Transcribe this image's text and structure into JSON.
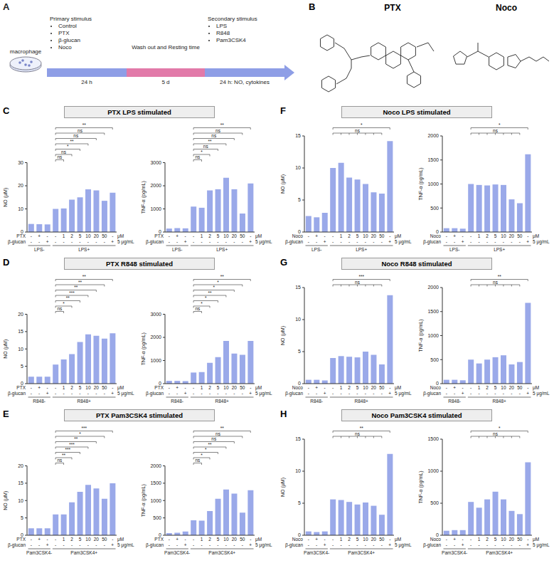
{
  "diagram": {
    "panel": "A",
    "cell_label": "macrophage",
    "steps": [
      {
        "title": "Primary stimulus",
        "items": [
          "Control",
          "PTX",
          "β-glucan",
          "Noco"
        ],
        "duration": "24 h"
      },
      {
        "title": "Wash out and Resting time",
        "items": [],
        "duration": "5 d"
      },
      {
        "title": "Secondary stimulus",
        "items": [
          "LPS",
          "R848",
          "Pam3CSK4"
        ],
        "duration": "24 h: NO, cytokines"
      }
    ]
  },
  "structures": {
    "panel": "B",
    "names": [
      "PTX",
      "Noco"
    ]
  },
  "chart_data": [
    {
      "type": "bar",
      "panel": "C",
      "title": "PTX LPS stimulated",
      "color": "#9aa9e9",
      "control": 3,
      "x_rows": [
        {
          "label": "PTX",
          "values": [
            "-",
            "+",
            "-",
            "-",
            "1",
            "2",
            "5",
            "10",
            "20",
            "50",
            "-"
          ],
          "unit": "μM"
        },
        {
          "label": "β-glucan",
          "values": [
            "-",
            "-",
            "+",
            "-",
            "-",
            "-",
            "-",
            "-",
            "-",
            "-",
            "+"
          ],
          "unit": "5 μg/mL"
        }
      ],
      "groups": [
        {
          "label": "LPS-",
          "count": 3
        },
        {
          "label": "LPS+",
          "count": 8
        }
      ],
      "charts": [
        {
          "y_label": "NO (μM)",
          "ylim": [
            0,
            30
          ],
          "yticks": [
            0,
            10,
            20,
            30
          ],
          "values": [
            3.5,
            3.4,
            3.3,
            10,
            10.2,
            14,
            15,
            18.5,
            18,
            13.5,
            17
          ],
          "significance": [
            {
              "bars": [
                4
              ],
              "label": "ns"
            },
            {
              "bars": [
                5
              ],
              "label": "ns"
            },
            {
              "bars": [
                6
              ],
              "label": "*"
            },
            {
              "bars": [
                7
              ],
              "label": "**"
            },
            {
              "bars": [
                8
              ],
              "label": "ns"
            },
            {
              "bars": [
                9
              ],
              "label": "ns"
            },
            {
              "bars": [
                10
              ],
              "label": "**"
            }
          ]
        },
        {
          "y_label": "TNF-α (pg/mL)",
          "ylim": [
            0,
            3000
          ],
          "yticks": [
            0,
            1000,
            2000,
            3000
          ],
          "values": [
            150,
            170,
            160,
            1100,
            1050,
            1800,
            1850,
            2350,
            1850,
            800,
            2100
          ],
          "significance": [
            {
              "bars": [
                4
              ],
              "label": "ns"
            },
            {
              "bars": [
                5
              ],
              "label": "*"
            },
            {
              "bars": [
                6
              ],
              "label": "ns"
            },
            {
              "bars": [
                7
              ],
              "label": "**"
            },
            {
              "bars": [
                8
              ],
              "label": "ns"
            },
            {
              "bars": [
                9
              ],
              "label": "ns"
            },
            {
              "bars": [
                10
              ],
              "label": "**"
            }
          ]
        }
      ]
    },
    {
      "type": "bar",
      "panel": "D",
      "title": "PTX R848 stimulated",
      "color": "#9aa9e9",
      "control": 3,
      "x_rows": [
        {
          "label": "PTX",
          "values": [
            "-",
            "+",
            "-",
            "-",
            "1",
            "2",
            "5",
            "10",
            "20",
            "50",
            "-"
          ],
          "unit": "μM"
        },
        {
          "label": "β-glucan",
          "values": [
            "-",
            "-",
            "+",
            "-",
            "-",
            "-",
            "-",
            "-",
            "-",
            "-",
            "+"
          ],
          "unit": "5 μg/mL"
        }
      ],
      "groups": [
        {
          "label": "R848-",
          "count": 3
        },
        {
          "label": "R848+",
          "count": 8
        }
      ],
      "charts": [
        {
          "y_label": "NO (μM)",
          "ylim": [
            0,
            20
          ],
          "yticks": [
            0,
            5,
            10,
            15,
            20
          ],
          "values": [
            2,
            2,
            2,
            5.5,
            7,
            8.5,
            12,
            14.2,
            13.8,
            13,
            14.5
          ],
          "significance": [
            {
              "bars": [
                4
              ],
              "label": "ns"
            },
            {
              "bars": [
                5
              ],
              "label": "*"
            },
            {
              "bars": [
                6
              ],
              "label": "**"
            },
            {
              "bars": [
                7
              ],
              "label": "***"
            },
            {
              "bars": [
                8
              ],
              "label": "**"
            },
            {
              "bars": [
                9
              ],
              "label": "**"
            },
            {
              "bars": [
                10
              ],
              "label": "**"
            }
          ]
        },
        {
          "y_label": "TNF-α (pg/mL)",
          "ylim": [
            0,
            3000
          ],
          "yticks": [
            0,
            1000,
            2000,
            3000
          ],
          "values": [
            120,
            120,
            110,
            480,
            500,
            900,
            1150,
            1850,
            1300,
            1250,
            1850
          ],
          "significance": [
            {
              "bars": [
                4
              ],
              "label": "ns"
            },
            {
              "bars": [
                5
              ],
              "label": "*"
            },
            {
              "bars": [
                6
              ],
              "label": "*"
            },
            {
              "bars": [
                7
              ],
              "label": "**"
            },
            {
              "bars": [
                8
              ],
              "label": "*"
            },
            {
              "bars": [
                9
              ],
              "label": "*"
            },
            {
              "bars": [
                10
              ],
              "label": "**"
            }
          ]
        }
      ]
    },
    {
      "type": "bar",
      "panel": "E",
      "title": "PTX Pam3CSK4 stimulated",
      "color": "#9aa9e9",
      "control": 3,
      "x_rows": [
        {
          "label": "PTX",
          "values": [
            "-",
            "+",
            "-",
            "-",
            "1",
            "2",
            "5",
            "10",
            "20",
            "50",
            "-"
          ],
          "unit": "μM"
        },
        {
          "label": "β-glucan",
          "values": [
            "-",
            "-",
            "+",
            "-",
            "-",
            "-",
            "-",
            "-",
            "-",
            "-",
            "+"
          ],
          "unit": "5 μg/mL"
        }
      ],
      "groups": [
        {
          "label": "Pam3CSK4-",
          "count": 3
        },
        {
          "label": "Pam3CSK4+",
          "count": 8
        }
      ],
      "charts": [
        {
          "y_label": "NO (μM)",
          "ylim": [
            0,
            20
          ],
          "yticks": [
            0,
            5,
            10,
            15,
            20
          ],
          "values": [
            2,
            2,
            2,
            6,
            6,
            9.5,
            12.5,
            14.5,
            13.5,
            10.5,
            15
          ],
          "significance": [
            {
              "bars": [
                4
              ],
              "label": "ns"
            },
            {
              "bars": [
                5
              ],
              "label": "**"
            },
            {
              "bars": [
                6
              ],
              "label": "***"
            },
            {
              "bars": [
                7
              ],
              "label": "***"
            },
            {
              "bars": [
                8
              ],
              "label": "**"
            },
            {
              "bars": [
                9
              ],
              "label": "*"
            },
            {
              "bars": [
                10
              ],
              "label": "***"
            }
          ]
        },
        {
          "y_label": "TNF-α (pg/mL)",
          "ylim": [
            0,
            2000
          ],
          "yticks": [
            0,
            500,
            1000,
            1500,
            2000
          ],
          "values": [
            60,
            70,
            110,
            430,
            420,
            700,
            1050,
            1320,
            1200,
            650,
            1300
          ],
          "significance": [
            {
              "bars": [
                4
              ],
              "label": "ns"
            },
            {
              "bars": [
                5
              ],
              "label": "*"
            },
            {
              "bars": [
                6
              ],
              "label": "*"
            },
            {
              "bars": [
                7
              ],
              "label": "**"
            },
            {
              "bars": [
                8
              ],
              "label": "ns"
            },
            {
              "bars": [
                9
              ],
              "label": "ns"
            },
            {
              "bars": [
                10
              ],
              "label": "**"
            }
          ]
        }
      ]
    },
    {
      "type": "bar",
      "panel": "F",
      "title": "Noco LPS stimulated",
      "color": "#9aa9e9",
      "control": 3,
      "x_rows": [
        {
          "label": "Noco",
          "values": [
            "-",
            "+",
            "-",
            "-",
            "1",
            "2",
            "5",
            "10",
            "20",
            "50",
            "-"
          ],
          "unit": "μM"
        },
        {
          "label": "β-glucan",
          "values": [
            "-",
            "-",
            "+",
            "-",
            "-",
            "-",
            "-",
            "-",
            "-",
            "-",
            "+"
          ],
          "unit": "5 μg/mL"
        }
      ],
      "groups": [
        {
          "label": "LPS-",
          "count": 3
        },
        {
          "label": "LPS+",
          "count": 8
        }
      ],
      "charts": [
        {
          "y_label": "NO (μM)",
          "ylim": [
            0,
            15
          ],
          "yticks": [
            0,
            5,
            10,
            15
          ],
          "values": [
            2.5,
            2.3,
            3,
            10,
            10.8,
            8.5,
            8.2,
            7.5,
            6.2,
            6,
            14.2
          ],
          "significance": [
            {
              "bars": [
                4,
                5,
                6,
                7,
                8,
                9
              ],
              "label": "ns"
            },
            {
              "bars": [
                10
              ],
              "label": "*"
            }
          ]
        },
        {
          "y_label": "TNF-α (pg/mL)",
          "ylim": [
            0,
            2000
          ],
          "yticks": [
            0,
            500,
            1000,
            1500,
            2000
          ],
          "values": [
            80,
            80,
            70,
            1000,
            980,
            970,
            990,
            980,
            680,
            600,
            1620
          ],
          "significance": [
            {
              "bars": [
                4,
                5,
                6,
                7,
                8,
                9
              ],
              "label": "ns"
            },
            {
              "bars": [
                10
              ],
              "label": "*"
            }
          ]
        }
      ]
    },
    {
      "type": "bar",
      "panel": "G",
      "title": "Noco R848 stimulated",
      "color": "#9aa9e9",
      "control": 3,
      "x_rows": [
        {
          "label": "Noco",
          "values": [
            "-",
            "+",
            "-",
            "-",
            "1",
            "2",
            "5",
            "10",
            "20",
            "50",
            "-"
          ],
          "unit": "μM"
        },
        {
          "label": "β-glucan",
          "values": [
            "-",
            "-",
            "+",
            "-",
            "-",
            "-",
            "-",
            "-",
            "-",
            "-",
            "+"
          ],
          "unit": "5 μg/mL"
        }
      ],
      "groups": [
        {
          "label": "R848-",
          "count": 3
        },
        {
          "label": "R848+",
          "count": 8
        }
      ],
      "charts": [
        {
          "y_label": "NO (μM)",
          "ylim": [
            0,
            15
          ],
          "yticks": [
            0,
            5,
            10,
            15
          ],
          "values": [
            0.6,
            0.6,
            0.5,
            4,
            4.3,
            4.2,
            4.1,
            5,
            4.5,
            3,
            13.8
          ],
          "significance": [
            {
              "bars": [
                4,
                5,
                6,
                7,
                8,
                9
              ],
              "label": "ns"
            },
            {
              "bars": [
                10
              ],
              "label": "***"
            }
          ]
        },
        {
          "y_label": "TNF-α (pg/mL)",
          "ylim": [
            0,
            2000
          ],
          "yticks": [
            0,
            500,
            1000,
            1500,
            2000
          ],
          "values": [
            80,
            80,
            70,
            500,
            420,
            500,
            550,
            590,
            400,
            450,
            1680
          ],
          "significance": [
            {
              "bars": [
                4,
                5,
                6,
                7,
                8,
                9
              ],
              "label": "ns"
            },
            {
              "bars": [
                10
              ],
              "label": "**"
            }
          ]
        }
      ]
    },
    {
      "type": "bar",
      "panel": "H",
      "title": "Noco Pam3CSK4 stimulated",
      "color": "#9aa9e9",
      "control": 3,
      "x_rows": [
        {
          "label": "Noco",
          "values": [
            "-",
            "+",
            "-",
            "-",
            "1",
            "2",
            "5",
            "10",
            "20",
            "50",
            "-"
          ],
          "unit": "μM"
        },
        {
          "label": "β-glucan",
          "values": [
            "-",
            "-",
            "+",
            "-",
            "-",
            "-",
            "-",
            "-",
            "-",
            "-",
            "+"
          ],
          "unit": "5 μg/mL"
        }
      ],
      "groups": [
        {
          "label": "Pam3CSK4-",
          "count": 3
        },
        {
          "label": "Pam3CSK4+",
          "count": 8
        }
      ],
      "charts": [
        {
          "y_label": "NO (μM)",
          "ylim": [
            0,
            15
          ],
          "yticks": [
            0,
            5,
            10,
            15
          ],
          "values": [
            0.6,
            0.5,
            0.6,
            5.6,
            5.5,
            5.2,
            4.8,
            5.1,
            4.6,
            3.2,
            12.7
          ],
          "significance": [
            {
              "bars": [
                4,
                5,
                6,
                7,
                8,
                9
              ],
              "label": "ns"
            },
            {
              "bars": [
                10
              ],
              "label": "**"
            }
          ]
        },
        {
          "y_label": "TNF-α (pg/mL)",
          "ylim": [
            0,
            1500
          ],
          "yticks": [
            0,
            500,
            1000,
            1500
          ],
          "values": [
            70,
            80,
            80,
            520,
            430,
            560,
            680,
            560,
            380,
            330,
            1140
          ],
          "significance": [
            {
              "bars": [
                4,
                5,
                6,
                7,
                8,
                9
              ],
              "label": "ns"
            },
            {
              "bars": [
                10
              ],
              "label": "*"
            }
          ]
        }
      ]
    }
  ]
}
